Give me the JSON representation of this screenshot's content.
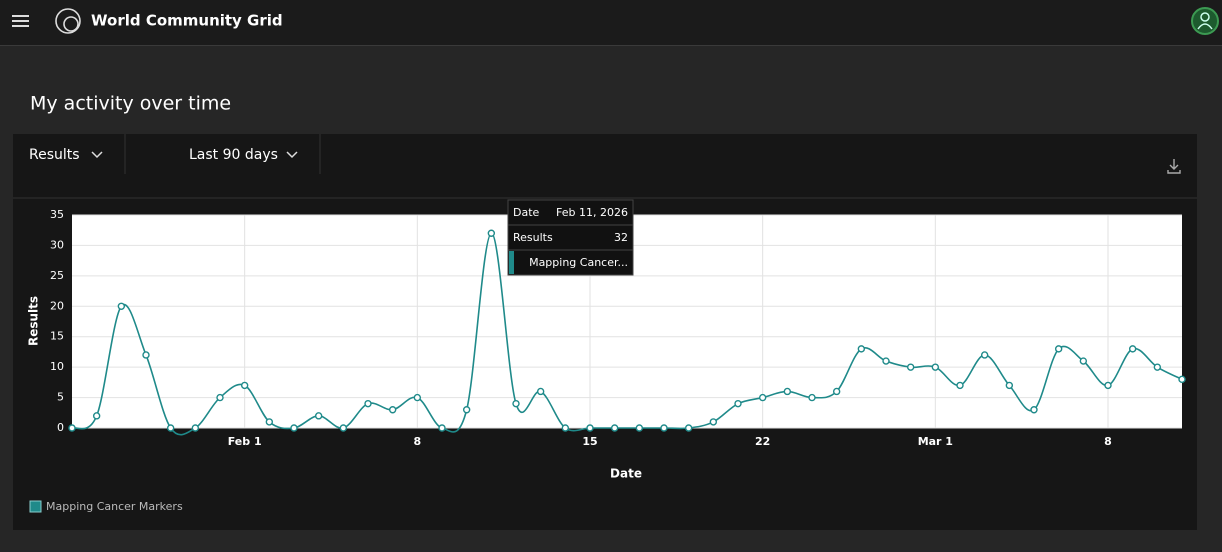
{
  "header": {
    "title": "World Community Grid"
  },
  "page": {
    "heading": "My activity over time"
  },
  "toolbar": {
    "metric": "Results",
    "range": "Last 90 days"
  },
  "tooltip": {
    "date_label": "Date",
    "date": "Feb 11, 2026",
    "results_label": "Results",
    "results": 32,
    "series": "Mapping Cancer..."
  },
  "chart_data": {
    "type": "line",
    "x_label": "Date",
    "y_label": "Results",
    "x": [
      "Jan 25",
      "Jan 26",
      "Jan 27",
      "Jan 28",
      "Jan 29",
      "Jan 30",
      "Jan 31",
      "Feb 1",
      "Feb 2",
      "Feb 3",
      "Feb 4",
      "Feb 5",
      "Feb 6",
      "Feb 7",
      "Feb 8",
      "Feb 9",
      "Feb 10",
      "Feb 11",
      "Feb 12",
      "Feb 13",
      "Feb 14",
      "Feb 15",
      "Feb 16",
      "Feb 17",
      "Feb 18",
      "Feb 19",
      "Feb 20",
      "Feb 21",
      "Feb 22",
      "Feb 23",
      "Feb 24",
      "Feb 25",
      "Feb 26",
      "Feb 27",
      "Feb 28",
      "Mar 1",
      "Mar 2",
      "Mar 3",
      "Mar 4",
      "Mar 5",
      "Mar 6",
      "Mar 7",
      "Mar 8",
      "Mar 9",
      "Mar 10",
      "Mar 11"
    ],
    "series": [
      {
        "name": "Mapping Cancer Markers",
        "color": "#1f8a8a",
        "values": [
          0,
          2,
          20,
          12,
          0,
          0,
          5,
          7,
          1,
          0,
          2,
          0,
          4,
          3,
          5,
          0,
          3,
          32,
          4,
          6,
          0,
          0,
          0,
          0,
          0,
          0,
          1,
          4,
          5,
          6,
          5,
          6,
          13,
          11,
          10,
          10,
          7,
          12,
          7,
          3,
          13,
          11,
          7,
          13,
          10,
          8
        ]
      }
    ],
    "ylim": [
      0,
      35
    ],
    "yticks": [
      0,
      5,
      10,
      15,
      20,
      25,
      30,
      35
    ],
    "xticks": [
      {
        "value": "Feb 1",
        "label": "Feb 1"
      },
      {
        "value": "Feb 8",
        "label": "8"
      },
      {
        "value": "Feb 15",
        "label": "15"
      },
      {
        "value": "Feb 22",
        "label": "22"
      },
      {
        "value": "Mar 1",
        "label": "Mar 1"
      },
      {
        "value": "Mar 8",
        "label": "8"
      }
    ],
    "grid": true
  }
}
